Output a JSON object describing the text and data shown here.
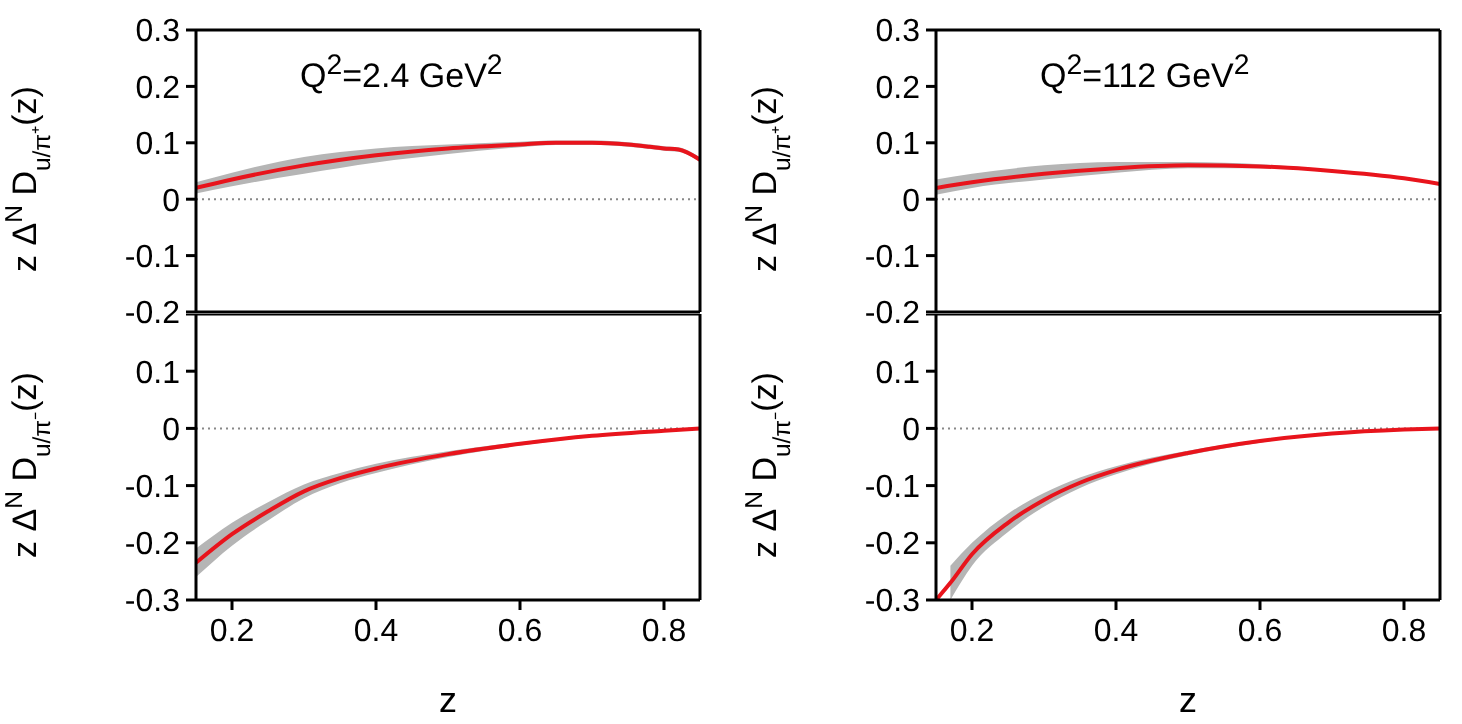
{
  "chart_data": [
    {
      "type": "line",
      "ylabel": "z Δ$^{N}$ D$_{u/π⁺}$(z)",
      "annotations": [
        "Q$^{2}$=2.4 GeV$^{2}$"
      ],
      "xlim": [
        0.15,
        0.85
      ],
      "xticks": [
        0.2,
        0.4,
        0.6,
        0.8
      ],
      "ylim": [
        -0.2,
        0.3
      ],
      "yticks": [
        -0.2,
        -0.1,
        0,
        0.1,
        0.2,
        0.3
      ],
      "tick_labels": "y",
      "ref_lines": [
        {
          "axis": "y",
          "value": 0,
          "line_style": "dotted",
          "color": "#888888"
        }
      ],
      "series": [
        {
          "color": "#e8141c",
          "x": [
            0.15,
            0.2,
            0.3,
            0.4,
            0.5,
            0.6,
            0.65,
            0.7,
            0.75,
            0.78,
            0.8,
            0.82,
            0.85
          ],
          "values": [
            0.02,
            0.035,
            0.06,
            0.078,
            0.09,
            0.097,
            0.1,
            0.1,
            0.097,
            0.093,
            0.09,
            0.088,
            0.07
          ],
          "lower": [
            0.01,
            0.023,
            0.045,
            0.065,
            0.08,
            0.092,
            0.096,
            0.096,
            0.093,
            0.089,
            0.086,
            0.084,
            0.066
          ],
          "upper": [
            0.03,
            0.047,
            0.075,
            0.09,
            0.097,
            0.102,
            0.104,
            0.104,
            0.101,
            0.097,
            0.094,
            0.092,
            0.074
          ]
        }
      ]
    },
    {
      "type": "line",
      "ylabel": "z Δ$^{N}$ D$_{u/π⁺}$(z)",
      "annotations": [
        "Q$^{2}$=112 GeV$^{2}$"
      ],
      "xlim": [
        0.15,
        0.85
      ],
      "xticks": [
        0.2,
        0.4,
        0.6,
        0.8
      ],
      "ylim": [
        -0.2,
        0.3
      ],
      "yticks": [
        -0.2,
        -0.1,
        0,
        0.1,
        0.2,
        0.3
      ],
      "tick_labels": "y",
      "ref_lines": [
        {
          "axis": "y",
          "value": 0,
          "line_style": "dotted",
          "color": "#888888"
        }
      ],
      "series": [
        {
          "color": "#e8141c",
          "x": [
            0.15,
            0.2,
            0.3,
            0.4,
            0.5,
            0.6,
            0.7,
            0.8,
            0.85
          ],
          "values": [
            0.02,
            0.03,
            0.045,
            0.055,
            0.06,
            0.058,
            0.05,
            0.037,
            0.027
          ],
          "lower": [
            0.008,
            0.02,
            0.035,
            0.047,
            0.055,
            0.055,
            0.048,
            0.036,
            0.026
          ],
          "upper": [
            0.035,
            0.045,
            0.06,
            0.066,
            0.066,
            0.062,
            0.052,
            0.038,
            0.028
          ]
        }
      ]
    },
    {
      "type": "line",
      "ylabel": "z Δ$^{N}$ D$_{u/π⁻}$(z)",
      "xlabel": "z",
      "xlim": [
        0.15,
        0.85
      ],
      "xticks": [
        0.2,
        0.4,
        0.6,
        0.8
      ],
      "ylim": [
        -0.3,
        0.2
      ],
      "yticks": [
        -0.3,
        -0.2,
        -0.1,
        0,
        0.1,
        {
          "value": 0.2,
          "label": null
        }
      ],
      "ref_lines": [
        {
          "axis": "y",
          "value": 0,
          "line_style": "dotted",
          "color": "#888888"
        }
      ],
      "series": [
        {
          "color": "#e8141c",
          "x": [
            0.15,
            0.2,
            0.25,
            0.3,
            0.35,
            0.4,
            0.5,
            0.6,
            0.7,
            0.8,
            0.85
          ],
          "values": [
            -0.235,
            -0.185,
            -0.145,
            -0.11,
            -0.087,
            -0.07,
            -0.045,
            -0.027,
            -0.013,
            -0.004,
            0
          ],
          "lower": [
            -0.26,
            -0.205,
            -0.161,
            -0.122,
            -0.096,
            -0.078,
            -0.05,
            -0.03,
            -0.015,
            -0.005,
            0
          ],
          "upper": [
            -0.21,
            -0.165,
            -0.129,
            -0.098,
            -0.078,
            -0.062,
            -0.04,
            -0.024,
            -0.011,
            -0.003,
            0
          ]
        }
      ]
    },
    {
      "type": "line",
      "ylabel": "z Δ$^{N}$ D$_{u/π⁻}$(z)",
      "xlabel": "z",
      "xlim": [
        0.15,
        0.85
      ],
      "xticks": [
        0.2,
        0.4,
        0.6,
        0.8
      ],
      "ylim": [
        -0.3,
        0.2
      ],
      "yticks": [
        -0.3,
        -0.2,
        -0.1,
        0,
        0.1,
        {
          "value": 0.2,
          "label": null
        }
      ],
      "ref_lines": [
        {
          "axis": "y",
          "value": 0,
          "line_style": "dotted",
          "color": "#888888"
        }
      ],
      "series": [
        {
          "color": "#e8141c",
          "x": [
            0.15,
            0.17,
            0.2,
            0.25,
            0.3,
            0.35,
            0.4,
            0.5,
            0.6,
            0.7,
            0.8,
            0.85
          ],
          "values": [
            -0.3,
            -0.27,
            -0.22,
            -0.165,
            -0.125,
            -0.095,
            -0.073,
            -0.043,
            -0.022,
            -0.009,
            -0.002,
            0
          ],
          "lower": [
            null,
            -0.3,
            -0.24,
            -0.181,
            -0.137,
            -0.104,
            -0.08,
            -0.047,
            -0.025,
            -0.01,
            -0.003,
            0
          ],
          "upper": [
            null,
            -0.24,
            -0.2,
            -0.149,
            -0.113,
            -0.086,
            -0.066,
            -0.039,
            -0.02,
            -0.008,
            -0.001,
            0
          ]
        }
      ]
    }
  ]
}
